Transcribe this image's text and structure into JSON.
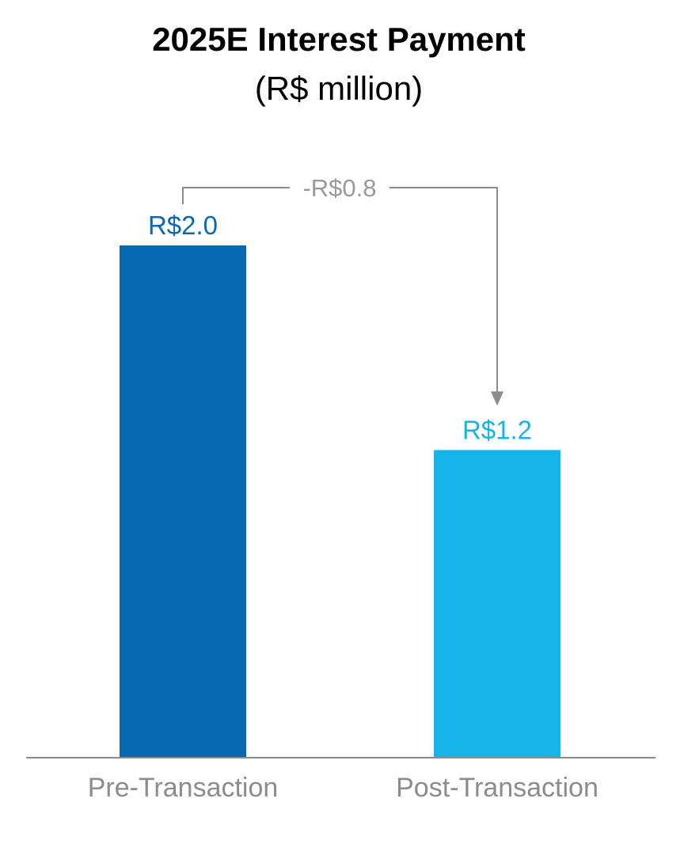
{
  "chart_data": {
    "type": "bar",
    "title": "2025E Interest Payment",
    "subtitle": "(R$ million)",
    "categories": [
      "Pre-Transaction",
      "Post-Transaction"
    ],
    "values": [
      2.0,
      1.2
    ],
    "value_labels": [
      "R$2.0",
      "R$1.2"
    ],
    "bar_colors": [
      "#0669b2",
      "#16b4e9"
    ],
    "ylim": [
      0,
      2.5
    ],
    "grid": false,
    "annotation": {
      "label": "-R$0.8",
      "value": -0.8,
      "from": "Pre-Transaction",
      "to": "Post-Transaction",
      "color": "#8c8c8c"
    },
    "axis_color": "#8c8c8c",
    "category_label_color": "#8c8c8c"
  }
}
